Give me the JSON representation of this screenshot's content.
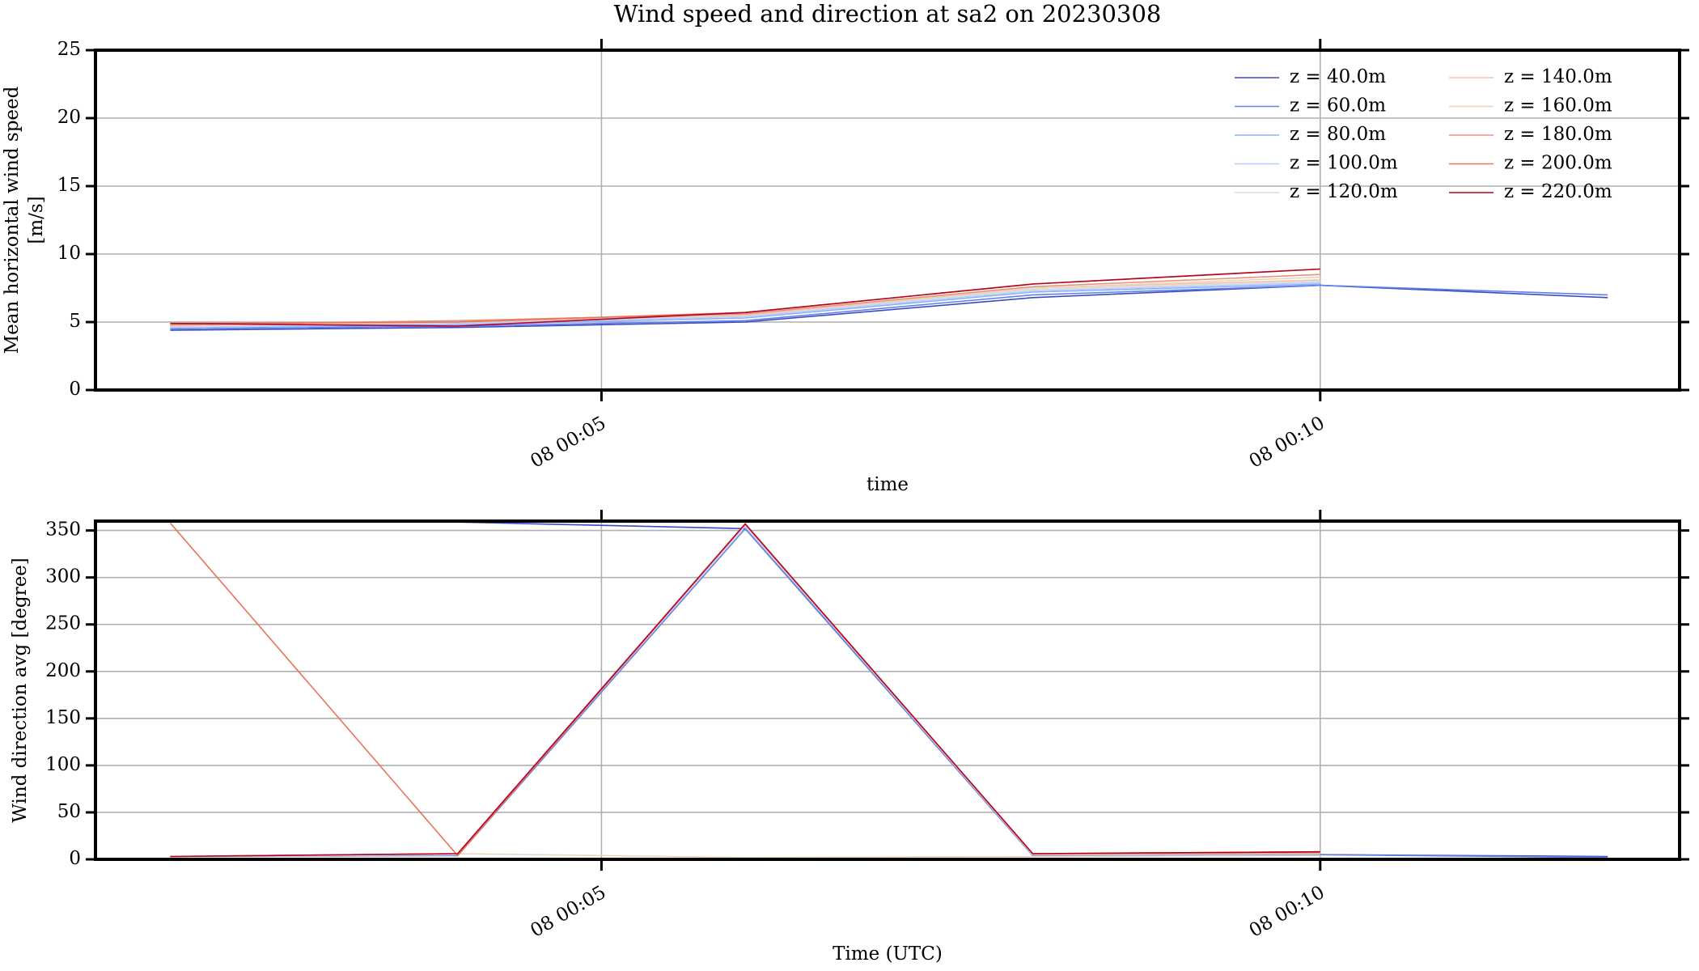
{
  "title": "Wind speed and direction at sa2 on 20230308",
  "chart_data": [
    {
      "type": "line",
      "xlabel": "time",
      "ylabel": [
        "Mean horizontal wind speed",
        "[m/s]"
      ],
      "x": [
        2,
        4,
        6,
        8,
        10,
        12
      ],
      "xlim": [
        1.48,
        12.5
      ],
      "xticks": [
        {
          "value": 5,
          "label": "08 00:05"
        },
        {
          "value": 10,
          "label": "08 00:10"
        }
      ],
      "ylim": [
        0,
        25
      ],
      "yticks": [
        0,
        5,
        10,
        15,
        20,
        25
      ],
      "grid": true,
      "legend": "upper right",
      "legend_columns": 2,
      "series": [
        {
          "name": "z = 40.0m",
          "color": "#3b4cc0",
          "values": [
            4.4,
            4.6,
            5.0,
            6.8,
            7.7,
            6.8
          ]
        },
        {
          "name": "z = 60.0m",
          "color": "#6282ea",
          "values": [
            4.5,
            4.7,
            5.1,
            7.0,
            7.7,
            7.0
          ]
        },
        {
          "name": "z = 80.0m",
          "color": "#8db0fe",
          "values": [
            4.6,
            4.8,
            5.3,
            7.2,
            7.8,
            null
          ]
        },
        {
          "name": "z = 100.0m",
          "color": "#b8d0f9",
          "values": [
            4.6,
            4.9,
            5.4,
            7.3,
            7.9,
            null
          ]
        },
        {
          "name": "z = 120.0m",
          "color": "#dddcdc",
          "values": [
            4.7,
            5.0,
            5.5,
            7.4,
            8.0,
            null
          ]
        },
        {
          "name": "z = 140.0m",
          "color": "#f5c4ac",
          "values": [
            4.7,
            5.0,
            5.5,
            7.5,
            8.1,
            null
          ]
        },
        {
          "name": "z = 160.0m",
          "color": "#e8d6c0",
          "values": [
            4.8,
            5.1,
            5.6,
            7.5,
            8.3,
            null
          ]
        },
        {
          "name": "z = 180.0m",
          "color": "#e69578",
          "values": [
            4.8,
            5.1,
            5.6,
            7.6,
            8.5,
            null
          ]
        },
        {
          "name": "z = 200.0m",
          "color": "#e7745b",
          "values": [
            4.9,
            5.0,
            5.7,
            7.8,
            8.9,
            null
          ]
        },
        {
          "name": "z = 220.0m",
          "color": "#b40426",
          "values": [
            4.9,
            4.7,
            5.7,
            7.8,
            8.9,
            null
          ]
        }
      ]
    },
    {
      "type": "line",
      "xlabel": "Time (UTC)",
      "ylabel": [
        "Wind direction avg [degree]"
      ],
      "x": [
        2,
        4,
        6,
        8,
        10,
        12
      ],
      "xlim": [
        1.48,
        12.5
      ],
      "xticks": [
        {
          "value": 5,
          "label": "08 00:05"
        },
        {
          "value": 10,
          "label": "08 00:10"
        }
      ],
      "ylim": [
        0,
        360
      ],
      "yticks": [
        0,
        50,
        100,
        150,
        200,
        250,
        300,
        350
      ],
      "grid": true,
      "series": [
        {
          "name": "z = 40.0m",
          "color": "#3b4cc0",
          "values": [
            359,
            359,
            352,
            5,
            5,
            3
          ]
        },
        {
          "name": "z = 60.0m",
          "color": "#6282ea",
          "values": [
            3,
            4,
            352,
            4,
            5,
            2
          ]
        },
        {
          "name": "z = 80.0m",
          "color": "#8db0fe",
          "values": [
            3,
            5,
            355,
            5,
            6,
            null
          ]
        },
        {
          "name": "z = 100.0m",
          "color": "#b8d0f9",
          "values": [
            3,
            5,
            355,
            5,
            6,
            null
          ]
        },
        {
          "name": "z = 120.0m",
          "color": "#dddcdc",
          "values": [
            3,
            5,
            356,
            5,
            6,
            null
          ]
        },
        {
          "name": "z = 140.0m",
          "color": "#f5c4ac",
          "values": [
            3,
            6,
            356,
            5,
            7,
            null
          ]
        },
        {
          "name": "z = 160.0m",
          "color": "#e8d6c0",
          "values": [
            3,
            6,
            2,
            3,
            4,
            null
          ]
        },
        {
          "name": "z = 180.0m",
          "color": "#e69578",
          "values": [
            3,
            6,
            357,
            6,
            7,
            null
          ]
        },
        {
          "name": "z = 200.0m",
          "color": "#e7745b",
          "values": [
            358,
            4,
            357,
            6,
            8,
            null
          ]
        },
        {
          "name": "z = 220.0m",
          "color": "#b40426",
          "values": [
            3,
            6,
            357,
            6,
            8,
            null
          ]
        }
      ]
    }
  ]
}
